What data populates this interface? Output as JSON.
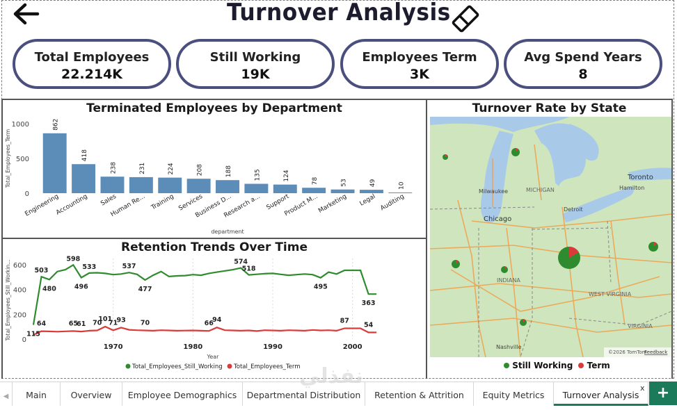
{
  "header": {
    "title": "Turnover Analysis"
  },
  "kpis": [
    {
      "label": "Total Employees",
      "value": "22.214K"
    },
    {
      "label": "Still Working",
      "value": "19K"
    },
    {
      "label": "Employees Term",
      "value": "3K"
    },
    {
      "label": "Avg Spend Years",
      "value": "8"
    }
  ],
  "dept_chart_title": "Terminated Employees by Department",
  "trend_chart_title": "Retention Trends Over Time",
  "map_title": "Turnover Rate by State",
  "map": {
    "labels": [
      "MICHIGAN",
      "Milwaukee",
      "Chicago",
      "Detroit",
      "Toronto",
      "Hamilton",
      "INDIANA",
      "WEST VIRGINIA",
      "VIRGINIA",
      "Nashville"
    ],
    "attribution": "©2026 TomTom",
    "feedback": "Feedback",
    "legend": [
      {
        "label": "Still Working",
        "color": "#2e8b2e"
      },
      {
        "label": "Term",
        "color": "#d93a3a"
      }
    ]
  },
  "chart_data": [
    {
      "type": "bar",
      "title": "Terminated Employees by Department",
      "xlabel": "department",
      "ylabel": "Total_Employees_Term",
      "categories": [
        "Engineering",
        "Accounting",
        "Sales",
        "Human Re...",
        "Training",
        "Services",
        "Business D...",
        "Research a...",
        "Support",
        "Product M...",
        "Marketing",
        "Legal",
        "Auditing"
      ],
      "values": [
        862,
        418,
        238,
        231,
        224,
        208,
        188,
        135,
        124,
        78,
        53,
        49,
        10
      ],
      "yticks": [
        "0",
        "500",
        "1000"
      ],
      "ylim": [
        0,
        1000
      ],
      "color": "#5b8db8"
    },
    {
      "type": "line",
      "title": "Retention Trends Over Time",
      "xlabel": "Year",
      "ylabel": "Total_Employees_Still_Workin...",
      "xticks": [
        "1970",
        "1980",
        "1990",
        "2000"
      ],
      "yticks": [
        "0",
        "200",
        "400",
        "600"
      ],
      "ylim": [
        0,
        650
      ],
      "xlim": [
        1960,
        2005
      ],
      "x": [
        1960,
        1961,
        1962,
        1963,
        1964,
        1965,
        1966,
        1967,
        1968,
        1969,
        1970,
        1971,
        1972,
        1973,
        1974,
        1975,
        1976,
        1977,
        1978,
        1979,
        1980,
        1981,
        1982,
        1983,
        1984,
        1985,
        1986,
        1987,
        1988,
        1989,
        1990,
        1991,
        1992,
        1993,
        1994,
        1995,
        1996,
        1997,
        1998,
        1999,
        2000,
        2001,
        2002,
        2003
      ],
      "series": [
        {
          "name": "Total_Employees_Still_Working",
          "color": "#2e8b2e",
          "values": [
            115,
            503,
            480,
            545,
            560,
            598,
            496,
            533,
            535,
            530,
            520,
            525,
            537,
            522,
            477,
            515,
            545,
            505,
            510,
            512,
            520,
            515,
            530,
            540,
            550,
            560,
            574,
            518,
            523,
            528,
            530,
            522,
            515,
            520,
            525,
            520,
            495,
            540,
            525,
            555,
            555,
            555,
            363,
            363
          ]
        },
        {
          "name": "Total_Employees_Term",
          "color": "#d93a3a",
          "values": [
            35,
            64,
            62,
            60,
            63,
            65,
            61,
            68,
            70,
            101,
            71,
            93,
            75,
            72,
            70,
            68,
            72,
            70,
            68,
            69,
            70,
            68,
            66,
            94,
            72,
            70,
            68,
            70,
            65,
            72,
            70,
            68,
            72,
            70,
            68,
            74,
            70,
            72,
            68,
            87,
            87,
            87,
            54,
            54
          ]
        }
      ],
      "data_labels": [
        {
          "series": 0,
          "label": "115"
        },
        {
          "series": 0,
          "label": "503"
        },
        {
          "series": 0,
          "label": "480"
        },
        {
          "series": 0,
          "label": "598"
        },
        {
          "series": 0,
          "label": "496"
        },
        {
          "series": 0,
          "label": "533"
        },
        {
          "series": 0,
          "label": "537"
        },
        {
          "series": 0,
          "label": "477"
        },
        {
          "series": 0,
          "label": "574"
        },
        {
          "series": 0,
          "label": "518"
        },
        {
          "series": 0,
          "label": "495"
        },
        {
          "series": 0,
          "label": "363"
        },
        {
          "series": 1,
          "label": "64"
        },
        {
          "series": 1,
          "label": "61"
        },
        {
          "series": 1,
          "label": "101"
        },
        {
          "series": 1,
          "label": "71"
        },
        {
          "series": 1,
          "label": "93"
        },
        {
          "series": 1,
          "label": "70"
        },
        {
          "series": 1,
          "label": "66"
        },
        {
          "series": 1,
          "label": "94"
        },
        {
          "series": 1,
          "label": "70"
        },
        {
          "series": 1,
          "label": "65"
        },
        {
          "series": 1,
          "label": "87"
        },
        {
          "series": 1,
          "label": "54"
        }
      ]
    }
  ],
  "tabs": [
    {
      "label": "Main"
    },
    {
      "label": "Overview"
    },
    {
      "label": "Employee Demographics"
    },
    {
      "label": "Departmental Distribution"
    },
    {
      "label": "Retention & Attrition"
    },
    {
      "label": "Equity Metrics"
    },
    {
      "label": "Turnover Analysis"
    }
  ],
  "tab_close": "x",
  "add_tab": "+",
  "watermark": "نفذلي"
}
